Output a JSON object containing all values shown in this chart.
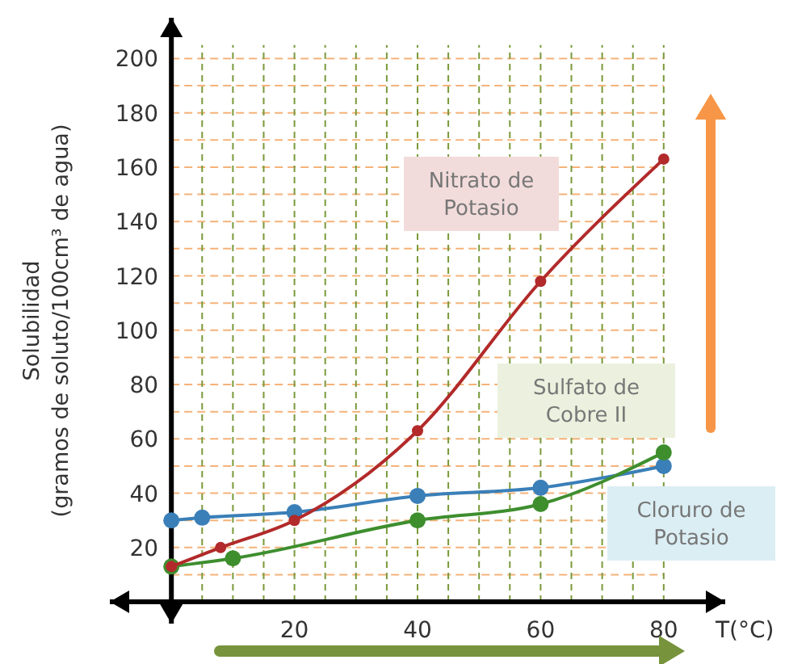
{
  "chart_data": {
    "type": "line",
    "xlabel": "T(°C)",
    "ylabel": "Solubilidad\n(gramos de soluto/100cm³ de agua)",
    "xlim": [
      -10,
      90
    ],
    "ylim": [
      -8,
      215
    ],
    "xticks": [
      {
        "value": 5,
        "label": null
      },
      {
        "value": 10,
        "label": null
      },
      {
        "value": 15,
        "label": null
      },
      20,
      {
        "value": 25,
        "label": null
      },
      {
        "value": 30,
        "label": null
      },
      {
        "value": 35,
        "label": null
      },
      40,
      {
        "value": 45,
        "label": null
      },
      {
        "value": 50,
        "label": null
      },
      {
        "value": 55,
        "label": null
      },
      60,
      {
        "value": 65,
        "label": null
      },
      {
        "value": 70,
        "label": null
      },
      {
        "value": 75,
        "label": null
      },
      80
    ],
    "yticks": [
      {
        "value": 10,
        "label": null
      },
      20,
      {
        "value": 30,
        "label": null
      },
      40,
      {
        "value": 50,
        "label": null
      },
      60,
      {
        "value": 70,
        "label": null
      },
      80,
      {
        "value": 90,
        "label": null
      },
      100,
      {
        "value": 110,
        "label": null
      },
      120,
      {
        "value": 130,
        "label": null
      },
      140,
      {
        "value": 150,
        "label": null
      },
      160,
      {
        "value": 170,
        "label": null
      },
      180,
      {
        "value": 190,
        "label": null
      },
      200
    ],
    "grid": true,
    "marker": "circle",
    "line_style": "solid",
    "series": [
      {
        "name": "Nitrato de Potasio",
        "color": "#b22a2a",
        "x": [
          0,
          8,
          20,
          40,
          60,
          80
        ],
        "values": [
          13,
          20,
          30,
          63,
          118,
          163
        ]
      },
      {
        "name": "Sulfato de Cobre II",
        "color": "#3e8e2e",
        "x": [
          0,
          10,
          40,
          60,
          80
        ],
        "values": [
          13,
          16,
          30,
          36,
          55
        ]
      },
      {
        "name": "Cloruro de Potasio",
        "color": "#3a7fb8",
        "x": [
          0,
          5,
          20,
          40,
          60,
          80
        ],
        "values": [
          30,
          31,
          33,
          39,
          42,
          50
        ]
      }
    ]
  }
}
